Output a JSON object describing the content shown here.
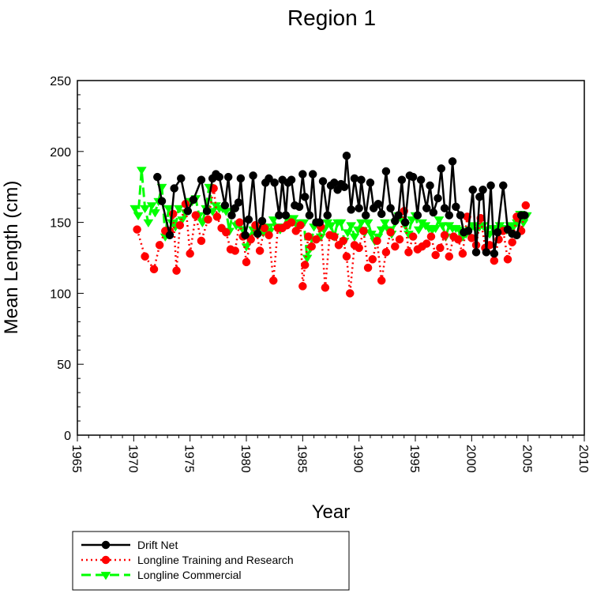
{
  "chart_data": {
    "type": "line",
    "title": "Region 1",
    "xlabel": "Year",
    "ylabel": "Mean Length (cm)",
    "xlim": [
      1965,
      2010
    ],
    "ylim": [
      0,
      250
    ],
    "xticks": [
      1965,
      1970,
      1975,
      1980,
      1985,
      1990,
      1995,
      2000,
      2005,
      2010
    ],
    "yticks": [
      0,
      50,
      100,
      150,
      200,
      250
    ],
    "grid": false,
    "legend_position": "bottom-left",
    "series": [
      {
        "name": "Drift Net",
        "color": "#000000",
        "line_style": "solid",
        "marker": "circle",
        "x": [
          1972.1,
          1972.5,
          1973.2,
          1973.6,
          1974.2,
          1974.8,
          1975.3,
          1976.0,
          1976.5,
          1977.0,
          1977.3,
          1977.6,
          1978.1,
          1978.4,
          1978.7,
          1979.0,
          1979.3,
          1979.5,
          1979.9,
          1980.2,
          1980.6,
          1981.0,
          1981.4,
          1981.7,
          1982.0,
          1982.5,
          1982.9,
          1983.2,
          1983.5,
          1983.7,
          1984.0,
          1984.3,
          1984.7,
          1985.0,
          1985.2,
          1985.6,
          1985.9,
          1986.2,
          1986.5,
          1986.8,
          1987.2,
          1987.5,
          1987.8,
          1988.1,
          1988.4,
          1988.7,
          1988.9,
          1989.3,
          1989.6,
          1990.0,
          1990.2,
          1990.6,
          1991.0,
          1991.3,
          1991.7,
          1992.0,
          1992.4,
          1992.8,
          1993.2,
          1993.5,
          1993.8,
          1994.1,
          1994.5,
          1994.8,
          1995.2,
          1995.5,
          1996.0,
          1996.3,
          1996.6,
          1997.0,
          1997.3,
          1997.6,
          1998.0,
          1998.3,
          1998.6,
          1999.0,
          1999.3,
          1999.7,
          2000.1,
          2000.4,
          2000.7,
          2001.0,
          2001.3,
          2001.7,
          2002.0,
          2002.3,
          2002.8,
          2003.2,
          2003.6,
          2004.0,
          2004.4,
          2004.7
        ],
        "y": [
          182,
          165,
          141,
          174,
          181,
          158,
          166,
          180,
          158,
          181,
          184,
          182,
          162,
          182,
          155,
          160,
          164,
          181,
          141,
          152,
          183,
          142,
          151,
          178,
          181,
          178,
          155,
          180,
          155,
          178,
          180,
          162,
          161,
          184,
          168,
          155,
          184,
          150,
          150,
          179,
          155,
          176,
          178,
          173,
          177,
          175,
          197,
          159,
          181,
          160,
          180,
          155,
          178,
          160,
          163,
          156,
          186,
          160,
          151,
          155,
          180,
          150,
          183,
          182,
          155,
          180,
          160,
          176,
          157,
          167,
          188,
          160,
          155,
          193,
          161,
          155,
          143,
          144,
          173,
          129,
          168,
          173,
          129,
          176,
          128,
          143,
          176,
          145,
          142,
          141,
          155,
          155
        ]
      },
      {
        "name": "Longline Training and Research",
        "color": "#ff0000",
        "line_style": "dotted",
        "marker": "circle",
        "x": [
          1970.3,
          1971.0,
          1971.8,
          1972.3,
          1972.8,
          1973.2,
          1973.5,
          1973.8,
          1974.1,
          1974.6,
          1975.0,
          1975.5,
          1976.0,
          1976.6,
          1977.1,
          1977.4,
          1977.8,
          1978.2,
          1978.6,
          1979.0,
          1979.4,
          1979.7,
          1980.0,
          1980.4,
          1980.8,
          1981.2,
          1981.6,
          1982.0,
          1982.4,
          1982.8,
          1983.2,
          1983.6,
          1984.0,
          1984.4,
          1984.8,
          1985.0,
          1985.2,
          1985.5,
          1985.8,
          1986.2,
          1986.6,
          1987.0,
          1987.4,
          1987.8,
          1988.2,
          1988.6,
          1988.9,
          1989.2,
          1989.6,
          1990.0,
          1990.4,
          1990.8,
          1991.2,
          1991.6,
          1992.0,
          1992.4,
          1992.8,
          1993.2,
          1993.6,
          1994.0,
          1994.4,
          1994.8,
          1995.2,
          1995.6,
          1996.0,
          1996.4,
          1996.8,
          1997.2,
          1997.6,
          1998.0,
          1998.4,
          1998.8,
          1999.2,
          1999.6,
          2000.0,
          2000.4,
          2000.8,
          2001.2,
          2001.6,
          2002.0,
          2002.4,
          2002.8,
          2003.2,
          2003.6,
          2004.0,
          2004.4,
          2004.8
        ],
        "y": [
          145,
          126,
          117,
          134,
          144,
          144,
          156,
          116,
          148,
          163,
          128,
          155,
          137,
          152,
          174,
          154,
          146,
          143,
          131,
          130,
          150,
          140,
          122,
          138,
          148,
          130,
          146,
          141,
          109,
          146,
          146,
          148,
          150,
          144,
          148,
          105,
          120,
          140,
          133,
          138,
          147,
          104,
          141,
          140,
          134,
          137,
          126,
          100,
          134,
          132,
          144,
          118,
          124,
          137,
          109,
          129,
          143,
          133,
          138,
          158,
          129,
          140,
          131,
          133,
          135,
          140,
          127,
          132,
          141,
          126,
          140,
          138,
          128,
          154,
          139,
          134,
          153,
          132,
          134,
          123,
          138,
          144,
          124,
          136,
          154,
          144,
          162
        ]
      },
      {
        "name": "Longline Commercial",
        "color": "#00ff00",
        "line_style": "dashed",
        "marker": "triangle-down",
        "x": [
          1970.1,
          1970.4,
          1970.7,
          1971.0,
          1971.3,
          1971.6,
          1971.9,
          1972.2,
          1972.5,
          1972.8,
          1973.1,
          1973.4,
          1973.7,
          1974.0,
          1974.3,
          1974.6,
          1974.9,
          1975.2,
          1975.5,
          1975.8,
          1976.1,
          1976.4,
          1976.7,
          1977.0,
          1977.3,
          1977.6,
          1977.9,
          1978.2,
          1978.5,
          1978.8,
          1979.1,
          1979.4,
          1979.7,
          1980.0,
          1980.3,
          1980.6,
          1980.9,
          1981.2,
          1981.5,
          1981.8,
          1982.1,
          1982.4,
          1982.7,
          1983.0,
          1983.3,
          1983.6,
          1983.9,
          1984.2,
          1984.5,
          1984.8,
          1985.1,
          1985.4,
          1985.7,
          1986.0,
          1986.3,
          1986.6,
          1986.9,
          1987.2,
          1987.5,
          1987.8,
          1988.1,
          1988.4,
          1988.7,
          1989.0,
          1989.3,
          1989.6,
          1989.9,
          1990.2,
          1990.5,
          1990.8,
          1991.1,
          1991.4,
          1991.7,
          1992.0,
          1992.3,
          1992.6,
          1992.9,
          1993.2,
          1993.5,
          1993.8,
          1994.1,
          1994.4,
          1994.7,
          1995.0,
          1995.3,
          1995.6,
          1995.9,
          1996.2,
          1996.5,
          1996.8,
          1997.1,
          1997.4,
          1997.7,
          1998.0,
          1998.3,
          1998.6,
          1998.9,
          1999.2,
          1999.5,
          1999.8,
          2000.1,
          2000.4,
          2000.7,
          2001.0,
          2001.3,
          2001.6,
          2001.9,
          2002.2,
          2002.5,
          2002.8,
          2003.1,
          2003.4,
          2003.7,
          2004.0,
          2004.3,
          2004.6,
          2004.9
        ],
        "y": [
          160,
          155,
          187,
          160,
          150,
          162,
          157,
          165,
          175,
          140,
          160,
          150,
          147,
          160,
          152,
          157,
          165,
          165,
          167,
          155,
          150,
          160,
          175,
          158,
          162,
          160,
          160,
          158,
          144,
          158,
          148,
          148,
          145,
          133,
          140,
          145,
          146,
          145,
          143,
          147,
          144,
          152,
          147,
          145,
          147,
          153,
          152,
          153,
          148,
          150,
          150,
          125,
          132,
          147,
          150,
          140,
          145,
          150,
          148,
          140,
          150,
          150,
          137,
          143,
          148,
          140,
          145,
          150,
          143,
          150,
          142,
          137,
          140,
          145,
          150,
          145,
          142,
          150,
          155,
          152,
          148,
          142,
          152,
          155,
          145,
          150,
          148,
          146,
          145,
          146,
          152,
          148,
          140,
          148,
          146,
          146,
          145,
          140,
          142,
          145,
          148,
          145,
          147,
          148,
          145,
          142,
          146,
          145,
          148,
          146,
          145,
          148,
          147,
          150,
          156,
          150,
          155
        ]
      }
    ]
  }
}
